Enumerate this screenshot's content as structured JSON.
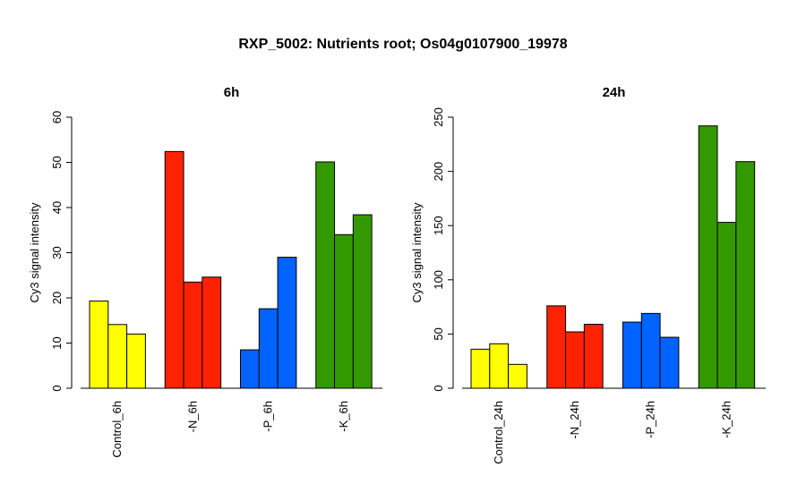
{
  "title": "RXP_5002: Nutrients root; Os04g0107900_19978",
  "chart_data": [
    {
      "type": "bar",
      "title": "6h",
      "ylabel": "Cy3 signal intensity",
      "ylim": [
        0,
        60
      ],
      "yticks": [
        0,
        10,
        20,
        30,
        40,
        50,
        60
      ],
      "groups": [
        {
          "label": "Control_6h",
          "color": "#ffff00",
          "values": [
            19.3,
            14.1,
            12.0
          ]
        },
        {
          "label": "-N_6h",
          "color": "#ff2200",
          "values": [
            52.4,
            23.5,
            24.6
          ]
        },
        {
          "label": "-P_6h",
          "color": "#0062ff",
          "values": [
            8.5,
            17.6,
            29.0
          ]
        },
        {
          "label": "-K_6h",
          "color": "#339900",
          "values": [
            50.1,
            34.0,
            38.4
          ]
        }
      ]
    },
    {
      "type": "bar",
      "title": "24h",
      "ylabel": "Cy3 signal intensity",
      "ylim": [
        0,
        250
      ],
      "yticks": [
        0,
        50,
        100,
        150,
        200,
        250
      ],
      "groups": [
        {
          "label": "Control_24h",
          "color": "#ffff00",
          "values": [
            36,
            41,
            22
          ]
        },
        {
          "label": "-N_24h",
          "color": "#ff2200",
          "values": [
            76,
            52,
            59
          ]
        },
        {
          "label": "-P_24h",
          "color": "#0062ff",
          "values": [
            61,
            69,
            47
          ]
        },
        {
          "label": "-K_24h",
          "color": "#339900",
          "values": [
            242,
            153,
            209
          ]
        }
      ]
    }
  ]
}
